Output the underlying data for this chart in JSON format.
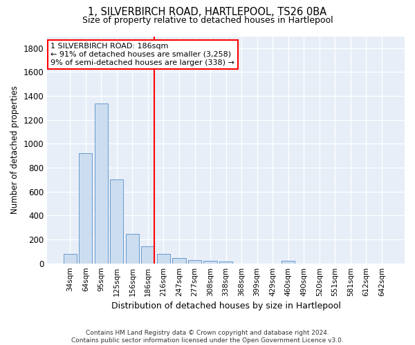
{
  "title": "1, SILVERBIRCH ROAD, HARTLEPOOL, TS26 0BA",
  "subtitle": "Size of property relative to detached houses in Hartlepool",
  "xlabel": "Distribution of detached houses by size in Hartlepool",
  "ylabel": "Number of detached properties",
  "footer_line1": "Contains HM Land Registry data © Crown copyright and database right 2024.",
  "footer_line2": "Contains public sector information licensed under the Open Government Licence v3.0.",
  "bar_labels": [
    "34sqm",
    "64sqm",
    "95sqm",
    "125sqm",
    "156sqm",
    "186sqm",
    "216sqm",
    "247sqm",
    "277sqm",
    "308sqm",
    "338sqm",
    "368sqm",
    "399sqm",
    "429sqm",
    "460sqm",
    "490sqm",
    "520sqm",
    "551sqm",
    "581sqm",
    "612sqm",
    "642sqm"
  ],
  "bar_values": [
    80,
    920,
    1340,
    700,
    248,
    140,
    80,
    45,
    28,
    22,
    14,
    0,
    0,
    0,
    22,
    0,
    0,
    0,
    0,
    0,
    0
  ],
  "bar_color": "#ccddf0",
  "bar_edge_color": "#6699cc",
  "vline_index": 5,
  "vline_color": "red",
  "annotation_title": "1 SILVERBIRCH ROAD: 186sqm",
  "annotation_line1": "← 91% of detached houses are smaller (3,258)",
  "annotation_line2": "9% of semi-detached houses are larger (338) →",
  "ylim": [
    0,
    1900
  ],
  "yticks": [
    0,
    200,
    400,
    600,
    800,
    1000,
    1200,
    1400,
    1600,
    1800
  ],
  "figsize": [
    6.0,
    5.0
  ],
  "dpi": 100,
  "background_color": "#e8eef8"
}
